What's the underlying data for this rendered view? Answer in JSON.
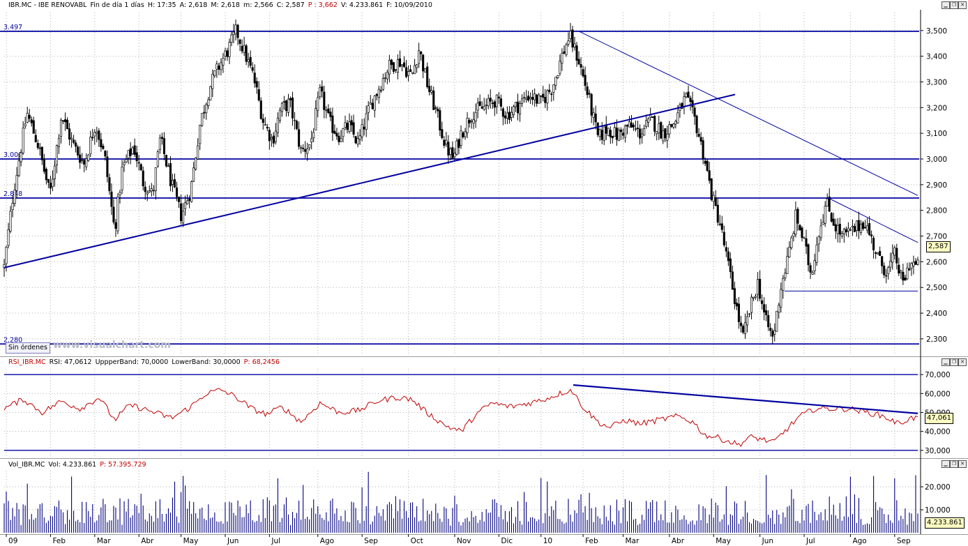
{
  "price_header": {
    "symbol": "IBR.MC - IBE RENOVABL",
    "period": "Fin de día 1 días",
    "hour": "H: 17:35",
    "open": "A: 2,618",
    "high": "M: 2,618",
    "low": "m: 2,566",
    "close": "C: 2,587",
    "p": "P : 3,662",
    "volume": "V: 4.233.861",
    "date": "F: 10/09/2010"
  },
  "rsi_header": {
    "name": "RSI_IBR.MC",
    "value": "RSI: 47,0612",
    "upper": "UppperBand: 70,0000",
    "lower": "LowerBand: 30,0000",
    "p": "P: 68,2456"
  },
  "vol_header": {
    "name": "Vol_IBR.MC",
    "value": "Vol: 4.233.861",
    "p": "P: 57.395.729"
  },
  "toolbar": {
    "orders_label": "Sin órdenes",
    "watermark": "www.visualchart.com",
    "window_icons": [
      "minimize-icon",
      "restore-icon",
      "close-icon"
    ]
  },
  "colors": {
    "price": "#000000",
    "trendline": "#0000a0",
    "rsi_line": "#c00000",
    "volume": "#000080",
    "grid": "#b0b0b0",
    "last_box": "#ffffc4"
  },
  "chart_data": [
    {
      "type": "candlestick",
      "title": "IBR.MC - IBE RENOVABL",
      "ylim": [
        2.24,
        3.57
      ],
      "yticks": [
        {
          "v": 3.5,
          "label": "3,500"
        },
        {
          "v": 3.4,
          "label": "3,400"
        },
        {
          "v": 3.3,
          "label": "3,300"
        },
        {
          "v": 3.2,
          "label": "3,200"
        },
        {
          "v": 3.1,
          "label": "3,100"
        },
        {
          "v": 3.0,
          "label": "3,000"
        },
        {
          "v": 2.9,
          "label": "2,900"
        },
        {
          "v": 2.8,
          "label": "2,800"
        },
        {
          "v": 2.7,
          "label": "2,700"
        },
        {
          "v": 2.6,
          "label": "2,600"
        },
        {
          "v": 2.5,
          "label": "2,500"
        },
        {
          "v": 2.4,
          "label": "2,400"
        },
        {
          "v": 2.3,
          "label": "2,300"
        }
      ],
      "level_lines": [
        {
          "v": 3.497,
          "label": "3.497"
        },
        {
          "v": 3.0,
          "label": "3.000"
        },
        {
          "v": 2.848,
          "label": "2.848"
        },
        {
          "v": 2.28,
          "label": "2.280"
        }
      ],
      "last_value": "2,587",
      "path_points": [
        [
          0,
          2.58
        ],
        [
          5,
          2.88
        ],
        [
          12,
          3.18
        ],
        [
          18,
          3.05
        ],
        [
          24,
          2.86
        ],
        [
          30,
          3.17
        ],
        [
          36,
          3.06
        ],
        [
          42,
          2.98
        ],
        [
          48,
          3.14
        ],
        [
          53,
          3.0
        ],
        [
          58,
          2.72
        ],
        [
          62,
          2.96
        ],
        [
          68,
          3.05
        ],
        [
          73,
          2.91
        ],
        [
          78,
          2.86
        ],
        [
          82,
          3.08
        ],
        [
          88,
          2.9
        ],
        [
          93,
          2.78
        ],
        [
          98,
          2.88
        ],
        [
          103,
          3.14
        ],
        [
          108,
          3.28
        ],
        [
          112,
          3.35
        ],
        [
          118,
          3.43
        ],
        [
          122,
          3.5
        ],
        [
          126,
          3.42
        ],
        [
          131,
          3.32
        ],
        [
          136,
          3.15
        ],
        [
          141,
          3.07
        ],
        [
          145,
          3.19
        ],
        [
          150,
          3.22
        ],
        [
          156,
          3.03
        ],
        [
          161,
          3.06
        ],
        [
          166,
          3.26
        ],
        [
          171,
          3.14
        ],
        [
          176,
          3.09
        ],
        [
          181,
          3.13
        ],
        [
          186,
          3.06
        ],
        [
          192,
          3.2
        ],
        [
          197,
          3.28
        ],
        [
          202,
          3.36
        ],
        [
          208,
          3.38
        ],
        [
          214,
          3.32
        ],
        [
          218,
          3.43
        ],
        [
          222,
          3.3
        ],
        [
          227,
          3.18
        ],
        [
          232,
          3.05
        ],
        [
          236,
          3.0
        ],
        [
          240,
          3.1
        ],
        [
          246,
          3.18
        ],
        [
          252,
          3.2
        ],
        [
          258,
          3.23
        ],
        [
          264,
          3.17
        ],
        [
          270,
          3.21
        ],
        [
          276,
          3.25
        ],
        [
          282,
          3.22
        ],
        [
          288,
          3.28
        ],
        [
          293,
          3.4
        ],
        [
          297,
          3.48
        ],
        [
          302,
          3.38
        ],
        [
          307,
          3.24
        ],
        [
          312,
          3.08
        ],
        [
          317,
          3.12
        ],
        [
          322,
          3.09
        ],
        [
          328,
          3.13
        ],
        [
          334,
          3.1
        ],
        [
          340,
          3.15
        ],
        [
          346,
          3.1
        ],
        [
          352,
          3.14
        ],
        [
          358,
          3.24
        ],
        [
          363,
          3.15
        ],
        [
          368,
          3.0
        ],
        [
          372,
          2.85
        ],
        [
          376,
          2.75
        ],
        [
          380,
          2.6
        ],
        [
          384,
          2.45
        ],
        [
          388,
          2.3
        ],
        [
          392,
          2.42
        ],
        [
          396,
          2.52
        ],
        [
          400,
          2.37
        ],
        [
          404,
          2.3
        ],
        [
          408,
          2.5
        ],
        [
          412,
          2.62
        ],
        [
          416,
          2.78
        ],
        [
          420,
          2.68
        ],
        [
          424,
          2.55
        ],
        [
          428,
          2.72
        ],
        [
          432,
          2.83
        ],
        [
          436,
          2.75
        ],
        [
          440,
          2.7
        ],
        [
          446,
          2.72
        ],
        [
          452,
          2.76
        ],
        [
          456,
          2.68
        ],
        [
          460,
          2.6
        ],
        [
          464,
          2.56
        ],
        [
          468,
          2.63
        ],
        [
          472,
          2.51
        ],
        [
          476,
          2.6
        ],
        [
          480,
          2.58
        ]
      ],
      "trendlines": [
        {
          "from": [
            0,
            2.577
          ],
          "to": [
            384,
            3.251
          ]
        },
        {
          "from": [
            302,
            3.497
          ],
          "to": [
            480,
            2.858
          ]
        },
        {
          "from": [
            433,
            2.848
          ],
          "to": [
            480,
            2.675
          ]
        },
        {
          "from": [
            410,
            2.486
          ],
          "to": [
            480,
            2.486
          ]
        }
      ]
    },
    {
      "type": "line",
      "title": "RSI_IBR.MC",
      "ylim": [
        27,
        73
      ],
      "yticks": [
        {
          "v": 70,
          "label": "70,000"
        },
        {
          "v": 60,
          "label": "60,000"
        },
        {
          "v": 50,
          "label": "50,000"
        },
        {
          "v": 40,
          "label": "40,000"
        },
        {
          "v": 30,
          "label": "30,000"
        }
      ],
      "bands": [
        70,
        30
      ],
      "last_value": "47,061",
      "path_points": [
        [
          0,
          52
        ],
        [
          10,
          57
        ],
        [
          20,
          50
        ],
        [
          30,
          56
        ],
        [
          40,
          52
        ],
        [
          50,
          58
        ],
        [
          58,
          46
        ],
        [
          66,
          54
        ],
        [
          76,
          51
        ],
        [
          88,
          47
        ],
        [
          98,
          53
        ],
        [
          106,
          60
        ],
        [
          114,
          62
        ],
        [
          122,
          58
        ],
        [
          130,
          52
        ],
        [
          138,
          49
        ],
        [
          146,
          53
        ],
        [
          156,
          45
        ],
        [
          166,
          55
        ],
        [
          176,
          50
        ],
        [
          186,
          51
        ],
        [
          196,
          56
        ],
        [
          206,
          58
        ],
        [
          214,
          57
        ],
        [
          222,
          50
        ],
        [
          232,
          43
        ],
        [
          240,
          40
        ],
        [
          248,
          49
        ],
        [
          256,
          55
        ],
        [
          266,
          53
        ],
        [
          276,
          55
        ],
        [
          284,
          57
        ],
        [
          292,
          60
        ],
        [
          298,
          62
        ],
        [
          304,
          53
        ],
        [
          312,
          45
        ],
        [
          318,
          42
        ],
        [
          326,
          46
        ],
        [
          334,
          44
        ],
        [
          344,
          46
        ],
        [
          354,
          48
        ],
        [
          362,
          45
        ],
        [
          368,
          38
        ],
        [
          374,
          37
        ],
        [
          380,
          35
        ],
        [
          386,
          33
        ],
        [
          392,
          37
        ],
        [
          398,
          36
        ],
        [
          404,
          34
        ],
        [
          410,
          40
        ],
        [
          418,
          48
        ],
        [
          426,
          52
        ],
        [
          434,
          52
        ],
        [
          444,
          52
        ],
        [
          454,
          50
        ],
        [
          462,
          48
        ],
        [
          470,
          44
        ],
        [
          476,
          47
        ],
        [
          480,
          47
        ]
      ],
      "trendlines": [
        {
          "from": [
            299,
            64.5
          ],
          "to": [
            480,
            49.5
          ]
        }
      ]
    },
    {
      "type": "bar",
      "title": "Vol_IBR.MC",
      "ylim": [
        0,
        27000
      ],
      "yticks": [
        {
          "v": 20000,
          "label": "20.000"
        },
        {
          "v": 10000,
          "label": "10.000"
        }
      ],
      "last_value": "4.233.861",
      "series_name": "Vol"
    }
  ],
  "x_axis": {
    "labels": [
      {
        "i": 3,
        "label": "09"
      },
      {
        "i": 24,
        "label": "Feb"
      },
      {
        "i": 45,
        "label": "Mar"
      },
      {
        "i": 66,
        "label": "Abr"
      },
      {
        "i": 86,
        "label": "May"
      },
      {
        "i": 107,
        "label": "Jun"
      },
      {
        "i": 128,
        "label": "Jul"
      },
      {
        "i": 151,
        "label": "Ago"
      },
      {
        "i": 172,
        "label": "Sep"
      },
      {
        "i": 194,
        "label": "Oct"
      },
      {
        "i": 216,
        "label": "Nov"
      },
      {
        "i": 237,
        "label": "Dic"
      },
      {
        "i": 257,
        "label": "10"
      },
      {
        "i": 277,
        "label": "Feb"
      },
      {
        "i": 296,
        "label": "Mar"
      },
      {
        "i": 318,
        "label": "Abr"
      },
      {
        "i": 339,
        "label": "May"
      },
      {
        "i": 361,
        "label": "Jun"
      },
      {
        "i": 382,
        "label": "Jul"
      },
      {
        "i": 404,
        "label": "Ago"
      },
      {
        "i": 425,
        "label": "Sep"
      }
    ],
    "count": 435
  }
}
